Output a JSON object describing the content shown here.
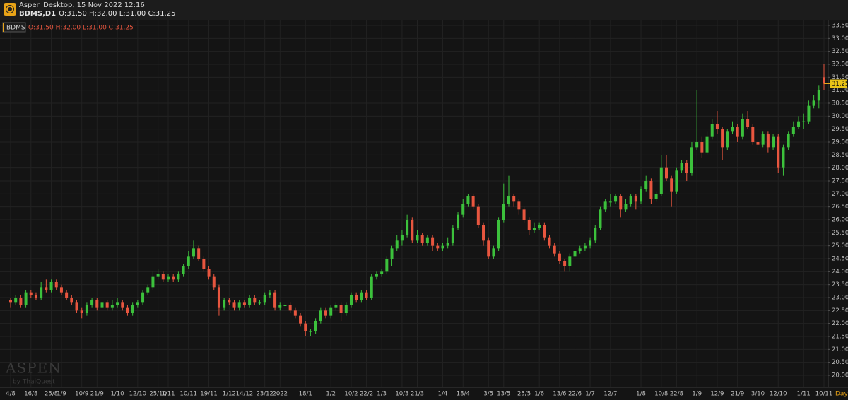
{
  "header": {
    "app_title": "Aspen Desktop, 15 Nov 2022 12:16",
    "symbol": "BDMS,D1",
    "ohlc_text": "O:31.50 H:32.00 L:31.00 C:31.25"
  },
  "watermark": {
    "brand": "ASPEN",
    "by": "by ThaiQuest"
  },
  "chart_data": {
    "type": "candlestick",
    "symbol": "BDMS",
    "ohlc_summary": "O:31.50 H:32.00 L:31.00 C:31.25",
    "period": "Day",
    "up_color": "#3cc13c",
    "down_color": "#e8563f",
    "grid": true,
    "last_price": {
      "value": 31.25,
      "label": "31.25"
    },
    "ylim": [
      20,
      33.5
    ],
    "yticks": [
      {
        "value": 20,
        "label": "20.00"
      },
      {
        "value": 20.5,
        "label": "20.50"
      },
      {
        "value": 21,
        "label": "21.00"
      },
      {
        "value": 21.5,
        "label": "21.50"
      },
      {
        "value": 22,
        "label": "22.00"
      },
      {
        "value": 22.5,
        "label": "22.50"
      },
      {
        "value": 23,
        "label": "23.00"
      },
      {
        "value": 23.5,
        "label": "23.50"
      },
      {
        "value": 24,
        "label": "24.00"
      },
      {
        "value": 24.5,
        "label": "24.50"
      },
      {
        "value": 25,
        "label": "25.00"
      },
      {
        "value": 25.5,
        "label": "25.50"
      },
      {
        "value": 26,
        "label": "26.00"
      },
      {
        "value": 26.5,
        "label": "26.50"
      },
      {
        "value": 27,
        "label": "27.00"
      },
      {
        "value": 27.5,
        "label": "27.50"
      },
      {
        "value": 28,
        "label": "28.00"
      },
      {
        "value": 28.5,
        "label": "28.50"
      },
      {
        "value": 29,
        "label": "29.00"
      },
      {
        "value": 29.5,
        "label": "29.50"
      },
      {
        "value": 30,
        "label": "30.00"
      },
      {
        "value": 30.5,
        "label": "30.50"
      },
      {
        "value": 31,
        "label": "31.00"
      },
      {
        "value": 31.5,
        "label": "31.50"
      },
      {
        "value": 32,
        "label": "32.00"
      },
      {
        "value": 32.5,
        "label": "32.50"
      },
      {
        "value": 33,
        "label": "33.00"
      },
      {
        "value": 33.5,
        "label": "33.50"
      }
    ],
    "categories": [
      "4/8",
      null,
      null,
      null,
      "16/8",
      null,
      null,
      null,
      "25/8",
      null,
      "1/9",
      null,
      null,
      null,
      "10/9",
      null,
      null,
      "21/9",
      null,
      null,
      null,
      "1/10",
      null,
      null,
      null,
      "12/10",
      null,
      null,
      null,
      "25/10",
      null,
      "1/11",
      null,
      null,
      null,
      "10/11",
      null,
      null,
      null,
      "19/11",
      null,
      null,
      null,
      "1/12",
      null,
      null,
      "14/12",
      null,
      null,
      null,
      "23/12",
      null,
      null,
      "2022",
      null,
      null,
      null,
      null,
      "18/1",
      null,
      null,
      null,
      null,
      "1/2",
      null,
      null,
      null,
      "10/2",
      null,
      null,
      "22/2",
      null,
      null,
      "1/3",
      null,
      null,
      null,
      "10/3",
      null,
      null,
      "21/3",
      null,
      null,
      null,
      null,
      "1/4",
      null,
      null,
      null,
      "18/4",
      null,
      null,
      null,
      null,
      "3/5",
      null,
      null,
      "13/5",
      null,
      null,
      null,
      "25/5",
      null,
      null,
      "1/6",
      null,
      null,
      null,
      "13/6",
      null,
      null,
      "22/6",
      null,
      null,
      "1/7",
      null,
      null,
      null,
      "12/7",
      null,
      null,
      null,
      null,
      null,
      "1/8",
      null,
      null,
      null,
      "10/8",
      null,
      null,
      "22/8",
      null,
      null,
      null,
      "1/9",
      null,
      null,
      null,
      "12/9",
      null,
      null,
      null,
      "21/9",
      null,
      null,
      null,
      "3/10",
      null,
      null,
      null,
      "12/10",
      null,
      null,
      null,
      null,
      "1/11",
      null,
      null,
      null,
      "10/11"
    ],
    "ohlc": [
      [
        22.9,
        23.0,
        22.6,
        22.8
      ],
      [
        22.8,
        23.1,
        22.7,
        23.0
      ],
      [
        23.0,
        23.1,
        22.6,
        22.7
      ],
      [
        22.7,
        23.3,
        22.6,
        23.2
      ],
      [
        23.2,
        23.3,
        23.0,
        23.1
      ],
      [
        23.1,
        23.2,
        22.9,
        23.0
      ],
      [
        23.0,
        23.6,
        22.9,
        23.4
      ],
      [
        23.4,
        23.7,
        23.2,
        23.3
      ],
      [
        23.3,
        23.7,
        23.2,
        23.6
      ],
      [
        23.6,
        23.7,
        23.3,
        23.4
      ],
      [
        23.4,
        23.5,
        23.1,
        23.2
      ],
      [
        23.2,
        23.3,
        22.9,
        23.0
      ],
      [
        23.0,
        23.1,
        22.7,
        22.8
      ],
      [
        22.8,
        22.9,
        22.4,
        22.5
      ],
      [
        22.5,
        22.6,
        22.2,
        22.4
      ],
      [
        22.4,
        22.8,
        22.3,
        22.7
      ],
      [
        22.7,
        23.0,
        22.6,
        22.9
      ],
      [
        22.9,
        23.0,
        22.5,
        22.6
      ],
      [
        22.6,
        22.9,
        22.5,
        22.8
      ],
      [
        22.8,
        22.9,
        22.5,
        22.6
      ],
      [
        22.6,
        22.9,
        22.5,
        22.7
      ],
      [
        22.7,
        23.0,
        22.6,
        22.8
      ],
      [
        22.8,
        22.9,
        22.5,
        22.6
      ],
      [
        22.6,
        22.7,
        22.3,
        22.4
      ],
      [
        22.4,
        22.8,
        22.3,
        22.7
      ],
      [
        22.7,
        22.9,
        22.6,
        22.8
      ],
      [
        22.8,
        23.3,
        22.7,
        23.2
      ],
      [
        23.2,
        23.5,
        23.1,
        23.4
      ],
      [
        23.4,
        24.0,
        23.3,
        23.8
      ],
      [
        23.8,
        24.1,
        23.7,
        23.9
      ],
      [
        23.9,
        24.0,
        23.6,
        23.7
      ],
      [
        23.7,
        23.9,
        23.6,
        23.8
      ],
      [
        23.8,
        23.9,
        23.6,
        23.7
      ],
      [
        23.7,
        24.0,
        23.6,
        23.9
      ],
      [
        23.9,
        24.3,
        23.8,
        24.2
      ],
      [
        24.2,
        24.8,
        24.1,
        24.6
      ],
      [
        24.6,
        25.2,
        24.5,
        24.9
      ],
      [
        24.9,
        25.0,
        24.4,
        24.5
      ],
      [
        24.5,
        24.6,
        24.0,
        24.1
      ],
      [
        24.1,
        24.2,
        23.7,
        23.8
      ],
      [
        23.8,
        23.9,
        23.3,
        23.4
      ],
      [
        23.4,
        23.5,
        22.3,
        22.6
      ],
      [
        22.6,
        23.0,
        22.5,
        22.9
      ],
      [
        22.9,
        23.0,
        22.7,
        22.8
      ],
      [
        22.8,
        22.9,
        22.5,
        22.6
      ],
      [
        22.6,
        22.9,
        22.5,
        22.8
      ],
      [
        22.8,
        22.9,
        22.6,
        22.7
      ],
      [
        22.7,
        23.1,
        22.6,
        23.0
      ],
      [
        23.0,
        23.1,
        22.7,
        22.8
      ],
      [
        22.8,
        22.9,
        22.7,
        22.8
      ],
      [
        22.8,
        23.2,
        22.7,
        23.1
      ],
      [
        23.1,
        23.3,
        23.0,
        23.2
      ],
      [
        23.2,
        23.3,
        22.5,
        22.6
      ],
      [
        22.6,
        22.8,
        22.5,
        22.7
      ],
      [
        22.7,
        22.8,
        22.6,
        22.7
      ],
      [
        22.7,
        22.8,
        22.4,
        22.5
      ],
      [
        22.5,
        22.6,
        22.2,
        22.3
      ],
      [
        22.3,
        22.4,
        21.9,
        22.0
      ],
      [
        22.0,
        22.1,
        21.5,
        21.7
      ],
      [
        21.7,
        21.8,
        21.5,
        21.7
      ],
      [
        21.7,
        22.2,
        21.6,
        22.1
      ],
      [
        22.1,
        22.6,
        22.0,
        22.5
      ],
      [
        22.5,
        22.6,
        22.2,
        22.3
      ],
      [
        22.3,
        22.7,
        22.2,
        22.6
      ],
      [
        22.6,
        22.8,
        22.5,
        22.7
      ],
      [
        22.7,
        22.8,
        22.1,
        22.4
      ],
      [
        22.4,
        22.8,
        22.3,
        22.7
      ],
      [
        22.7,
        23.2,
        22.6,
        23.1
      ],
      [
        23.1,
        23.2,
        22.8,
        22.9
      ],
      [
        22.9,
        23.3,
        22.8,
        23.2
      ],
      [
        23.2,
        23.3,
        22.9,
        23.0
      ],
      [
        23.0,
        23.9,
        22.9,
        23.8
      ],
      [
        23.8,
        24.0,
        23.7,
        23.9
      ],
      [
        23.9,
        24.1,
        23.8,
        24.0
      ],
      [
        24.0,
        24.6,
        23.9,
        24.5
      ],
      [
        24.5,
        25.0,
        24.2,
        24.9
      ],
      [
        24.9,
        25.4,
        24.8,
        25.2
      ],
      [
        25.2,
        25.6,
        25.0,
        25.4
      ],
      [
        25.4,
        26.2,
        25.3,
        26.0
      ],
      [
        26.0,
        26.1,
        25.1,
        25.2
      ],
      [
        25.2,
        25.6,
        25.1,
        25.4
      ],
      [
        25.4,
        25.5,
        25.0,
        25.1
      ],
      [
        25.1,
        25.4,
        25.0,
        25.3
      ],
      [
        25.3,
        25.4,
        24.8,
        25.0
      ],
      [
        25.0,
        25.1,
        24.8,
        24.9
      ],
      [
        24.9,
        25.1,
        24.8,
        25.0
      ],
      [
        25.0,
        25.3,
        24.9,
        25.1
      ],
      [
        25.1,
        25.8,
        25.0,
        25.7
      ],
      [
        25.7,
        26.3,
        25.6,
        26.2
      ],
      [
        26.2,
        26.8,
        26.1,
        26.6
      ],
      [
        26.6,
        27.0,
        26.5,
        26.9
      ],
      [
        26.9,
        27.0,
        26.4,
        26.5
      ],
      [
        26.5,
        26.6,
        25.7,
        25.8
      ],
      [
        25.8,
        25.9,
        25.0,
        25.2
      ],
      [
        25.2,
        25.3,
        24.5,
        24.6
      ],
      [
        24.6,
        25.0,
        24.5,
        24.9
      ],
      [
        24.9,
        26.1,
        24.8,
        26.0
      ],
      [
        26.0,
        27.4,
        25.9,
        26.6
      ],
      [
        26.6,
        27.7,
        26.5,
        26.9
      ],
      [
        26.9,
        27.0,
        26.5,
        26.7
      ],
      [
        26.7,
        26.8,
        26.2,
        26.4
      ],
      [
        26.4,
        26.5,
        25.9,
        26.0
      ],
      [
        26.0,
        26.1,
        25.4,
        25.6
      ],
      [
        25.6,
        25.9,
        25.5,
        25.7
      ],
      [
        25.7,
        25.9,
        25.6,
        25.8
      ],
      [
        25.8,
        25.9,
        25.2,
        25.3
      ],
      [
        25.3,
        25.4,
        24.9,
        25.0
      ],
      [
        25.0,
        25.1,
        24.6,
        24.7
      ],
      [
        24.7,
        24.8,
        24.3,
        24.4
      ],
      [
        24.4,
        24.5,
        24.0,
        24.2
      ],
      [
        24.2,
        24.7,
        24.0,
        24.6
      ],
      [
        24.6,
        24.9,
        24.5,
        24.8
      ],
      [
        24.8,
        25.0,
        24.7,
        24.9
      ],
      [
        24.9,
        25.1,
        24.8,
        25.0
      ],
      [
        25.0,
        25.3,
        24.9,
        25.2
      ],
      [
        25.2,
        25.8,
        25.1,
        25.7
      ],
      [
        25.7,
        26.5,
        25.6,
        26.4
      ],
      [
        26.4,
        26.8,
        26.3,
        26.7
      ],
      [
        26.7,
        27.0,
        26.5,
        26.7
      ],
      [
        26.7,
        27.0,
        26.6,
        26.9
      ],
      [
        26.9,
        27.0,
        26.1,
        26.4
      ],
      [
        26.4,
        26.8,
        26.3,
        26.6
      ],
      [
        26.6,
        27.0,
        26.5,
        26.9
      ],
      [
        26.9,
        27.0,
        26.4,
        26.7
      ],
      [
        26.7,
        27.3,
        26.6,
        27.2
      ],
      [
        27.2,
        27.7,
        27.1,
        27.5
      ],
      [
        27.5,
        27.6,
        26.6,
        26.8
      ],
      [
        26.8,
        27.1,
        26.7,
        27.0
      ],
      [
        27.0,
        28.5,
        26.9,
        28.0
      ],
      [
        28.0,
        28.5,
        27.5,
        27.6
      ],
      [
        27.6,
        27.7,
        26.5,
        27.1
      ],
      [
        27.1,
        28.0,
        27.0,
        27.9
      ],
      [
        27.9,
        28.3,
        27.8,
        28.2
      ],
      [
        28.2,
        28.3,
        27.5,
        27.8
      ],
      [
        27.8,
        29.0,
        27.7,
        28.8
      ],
      [
        28.8,
        31.0,
        28.7,
        29.0
      ],
      [
        29.0,
        29.2,
        28.4,
        28.6
      ],
      [
        28.6,
        29.4,
        28.5,
        29.2
      ],
      [
        29.2,
        29.9,
        29.1,
        29.7
      ],
      [
        29.7,
        30.2,
        29.3,
        29.5
      ],
      [
        29.5,
        29.6,
        28.3,
        28.8
      ],
      [
        28.8,
        29.5,
        28.7,
        29.4
      ],
      [
        29.4,
        29.8,
        29.3,
        29.6
      ],
      [
        29.6,
        29.7,
        29.0,
        29.2
      ],
      [
        29.2,
        30.1,
        29.1,
        29.9
      ],
      [
        29.9,
        30.2,
        29.5,
        29.6
      ],
      [
        29.6,
        29.7,
        28.9,
        29.0
      ],
      [
        29.0,
        29.2,
        28.6,
        28.9
      ],
      [
        28.9,
        29.4,
        28.8,
        29.3
      ],
      [
        29.3,
        29.4,
        28.6,
        28.8
      ],
      [
        28.8,
        29.3,
        28.7,
        29.2
      ],
      [
        29.2,
        29.3,
        27.8,
        28.0
      ],
      [
        28.0,
        28.9,
        27.7,
        28.8
      ],
      [
        28.8,
        29.4,
        28.7,
        29.3
      ],
      [
        29.3,
        29.8,
        29.2,
        29.6
      ],
      [
        29.6,
        30.0,
        29.5,
        29.8
      ],
      [
        29.8,
        30.1,
        29.5,
        29.8
      ],
      [
        29.8,
        30.6,
        29.7,
        30.4
      ],
      [
        30.4,
        30.8,
        30.3,
        30.6
      ],
      [
        30.6,
        31.2,
        30.3,
        31.0
      ],
      [
        31.5,
        32.0,
        31.0,
        31.25
      ]
    ]
  }
}
